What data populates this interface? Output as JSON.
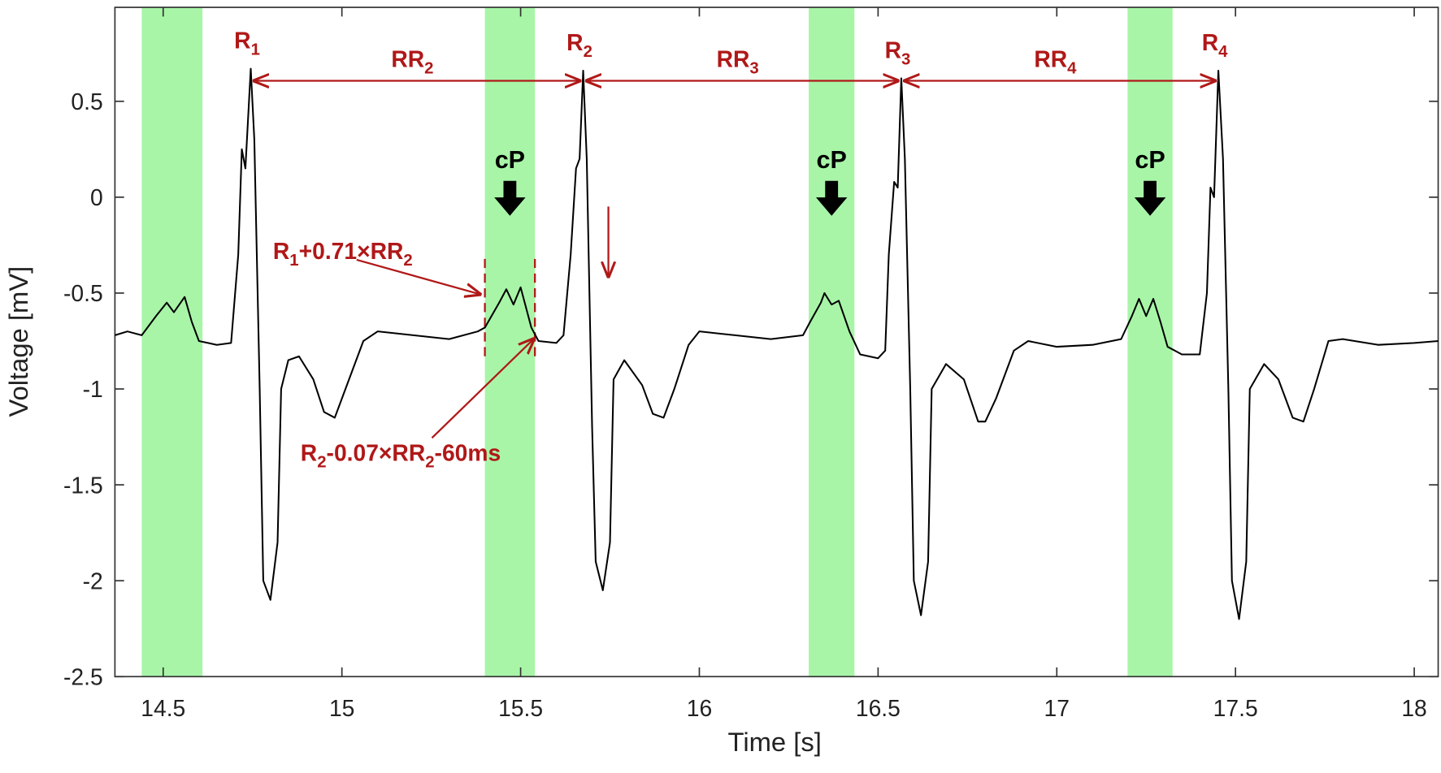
{
  "chart_data": {
    "type": "line",
    "x_label": "Time [s]",
    "y_label": "Voltage [mV]",
    "xlim": [
      14.365,
      18.067
    ],
    "ylim": [
      -2.5,
      0.99
    ],
    "xticks": [
      14.5,
      15,
      15.5,
      16,
      16.5,
      17,
      17.5,
      18
    ],
    "yticks": [
      -2.5,
      -2,
      -1.5,
      -1,
      -0.5,
      0,
      0.5
    ],
    "grid": false,
    "color": "#000000",
    "band_color": "#a8f5a8",
    "x": [
      14.365,
      14.4,
      14.44,
      14.48,
      14.51,
      14.53,
      14.56,
      14.58,
      14.6,
      14.65,
      14.69,
      14.71,
      14.72,
      14.73,
      14.745,
      14.755,
      14.77,
      14.78,
      14.8,
      14.82,
      14.83,
      14.85,
      14.88,
      14.92,
      14.95,
      14.98,
      15.01,
      15.06,
      15.1,
      15.2,
      15.3,
      15.38,
      15.4,
      15.44,
      15.46,
      15.48,
      15.5,
      15.53,
      15.55,
      15.6,
      15.62,
      15.64,
      15.655,
      15.665,
      15.675,
      15.685,
      15.7,
      15.71,
      15.73,
      15.75,
      15.76,
      15.79,
      15.84,
      15.87,
      15.9,
      15.93,
      15.97,
      16.0,
      16.1,
      16.2,
      16.29,
      16.31,
      16.34,
      16.35,
      16.37,
      16.39,
      16.42,
      16.45,
      16.5,
      16.52,
      16.53,
      16.545,
      16.555,
      16.565,
      16.575,
      16.59,
      16.6,
      16.62,
      16.64,
      16.65,
      16.69,
      16.74,
      16.78,
      16.8,
      16.83,
      16.88,
      16.92,
      17.0,
      17.1,
      17.18,
      17.21,
      17.23,
      17.25,
      17.27,
      17.29,
      17.31,
      17.35,
      17.4,
      17.42,
      17.43,
      17.44,
      17.452,
      17.465,
      17.48,
      17.49,
      17.51,
      17.53,
      17.54,
      17.58,
      17.62,
      17.66,
      17.69,
      17.72,
      17.76,
      17.8,
      17.9,
      18.0,
      18.067
    ],
    "values": [
      -0.72,
      -0.7,
      -0.72,
      -0.62,
      -0.55,
      -0.6,
      -0.52,
      -0.65,
      -0.75,
      -0.77,
      -0.76,
      -0.3,
      0.25,
      0.15,
      0.67,
      0.3,
      -1.0,
      -2.0,
      -2.1,
      -1.8,
      -1.0,
      -0.85,
      -0.83,
      -0.95,
      -1.12,
      -1.15,
      -1.0,
      -0.75,
      -0.7,
      -0.72,
      -0.74,
      -0.7,
      -0.68,
      -0.55,
      -0.48,
      -0.56,
      -0.47,
      -0.68,
      -0.75,
      -0.76,
      -0.72,
      -0.3,
      0.15,
      0.2,
      0.66,
      0.2,
      -1.2,
      -1.9,
      -2.05,
      -1.8,
      -0.95,
      -0.85,
      -0.98,
      -1.13,
      -1.15,
      -1.0,
      -0.77,
      -0.7,
      -0.72,
      -0.74,
      -0.72,
      -0.65,
      -0.55,
      -0.5,
      -0.56,
      -0.54,
      -0.7,
      -0.82,
      -0.84,
      -0.8,
      -0.3,
      0.08,
      0.05,
      0.62,
      0.2,
      -1.0,
      -2.0,
      -2.18,
      -1.9,
      -1.0,
      -0.87,
      -0.95,
      -1.17,
      -1.17,
      -1.05,
      -0.8,
      -0.75,
      -0.78,
      -0.77,
      -0.74,
      -0.62,
      -0.53,
      -0.62,
      -0.53,
      -0.65,
      -0.78,
      -0.82,
      -0.82,
      -0.5,
      0.05,
      0.0,
      0.66,
      0.2,
      -1.0,
      -2.0,
      -2.2,
      -1.9,
      -1.0,
      -0.87,
      -0.95,
      -1.15,
      -1.17,
      -1.0,
      -0.75,
      -0.74,
      -0.77,
      -0.76,
      -0.75
    ],
    "shaded_intervals": [
      [
        14.44,
        14.61
      ],
      [
        15.4,
        15.54
      ],
      [
        16.306,
        16.434
      ],
      [
        17.198,
        17.324
      ]
    ],
    "r_peaks": [
      {
        "label": [
          "R",
          "1"
        ],
        "x": 14.745,
        "y": 0.67
      },
      {
        "label": [
          "R",
          "2"
        ],
        "x": 15.675,
        "y": 0.66
      },
      {
        "label": [
          "R",
          "3"
        ],
        "x": 16.565,
        "y": 0.62
      },
      {
        "label": [
          "R",
          "4"
        ],
        "x": 17.452,
        "y": 0.66
      }
    ],
    "rr_labels": [
      [
        "RR",
        "2"
      ],
      [
        "RR",
        "3"
      ],
      [
        "RR",
        "4"
      ]
    ],
    "cp_labels": [
      "cP",
      "cP",
      "cP"
    ],
    "window_start_label": [
      "R",
      "1",
      "+0.71×RR",
      "2"
    ],
    "window_end_label": [
      "R",
      "2",
      "-0.07×RR",
      "2",
      "-60ms"
    ]
  }
}
